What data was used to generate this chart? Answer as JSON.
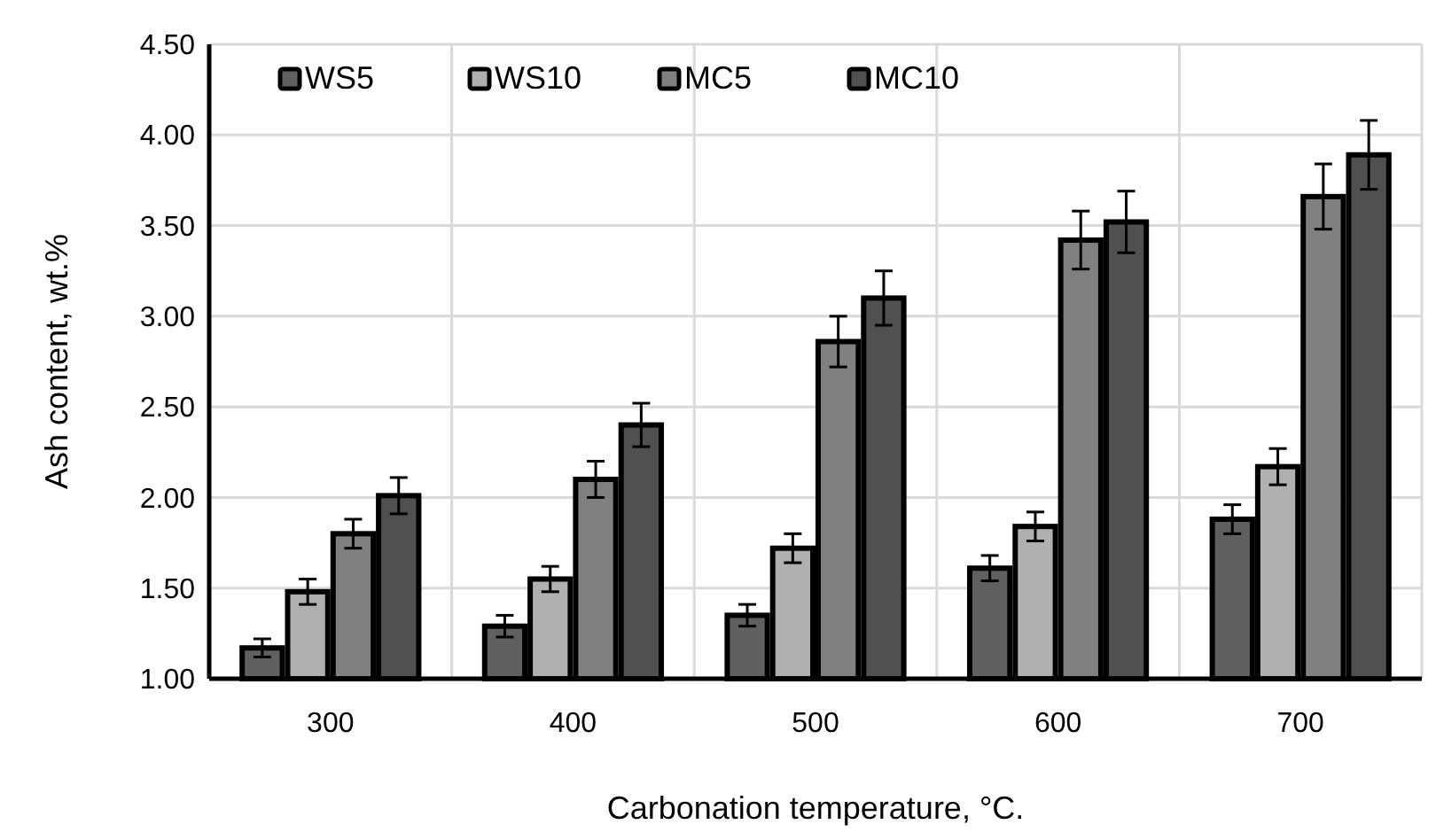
{
  "chart_data": {
    "type": "bar",
    "xlabel": "Carbonation temperature, °C.",
    "ylabel": "Ash content, wt.%",
    "categories": [
      "300",
      "400",
      "500",
      "600",
      "700"
    ],
    "series": [
      {
        "name": "WS5",
        "color": "#606060",
        "values": [
          1.17,
          1.29,
          1.35,
          1.61,
          1.88
        ],
        "errors": [
          0.05,
          0.06,
          0.06,
          0.07,
          0.08
        ]
      },
      {
        "name": "WS10",
        "color": "#b0b0b0",
        "values": [
          1.48,
          1.55,
          1.72,
          1.84,
          2.17
        ],
        "errors": [
          0.07,
          0.07,
          0.08,
          0.08,
          0.1
        ]
      },
      {
        "name": "MC5",
        "color": "#808080",
        "values": [
          1.8,
          2.1,
          2.86,
          3.42,
          3.66
        ],
        "errors": [
          0.08,
          0.1,
          0.14,
          0.16,
          0.18
        ]
      },
      {
        "name": "MC10",
        "color": "#505050",
        "values": [
          2.01,
          2.4,
          3.1,
          3.52,
          3.89
        ],
        "errors": [
          0.1,
          0.12,
          0.15,
          0.17,
          0.19
        ]
      }
    ],
    "ylim": [
      1,
      4.5
    ],
    "yticks": [
      {
        "value": 1,
        "label": "1.00"
      },
      {
        "value": 1.5,
        "label": "1.50"
      },
      {
        "value": 2,
        "label": "2.00"
      },
      {
        "value": 2.5,
        "label": "2.50"
      },
      {
        "value": 3,
        "label": "3.00"
      },
      {
        "value": 3.5,
        "label": "3.50"
      },
      {
        "value": 4,
        "label": "4.00"
      },
      {
        "value": 4.5,
        "label": "4.50"
      }
    ],
    "grid": true,
    "legend": "top left"
  }
}
